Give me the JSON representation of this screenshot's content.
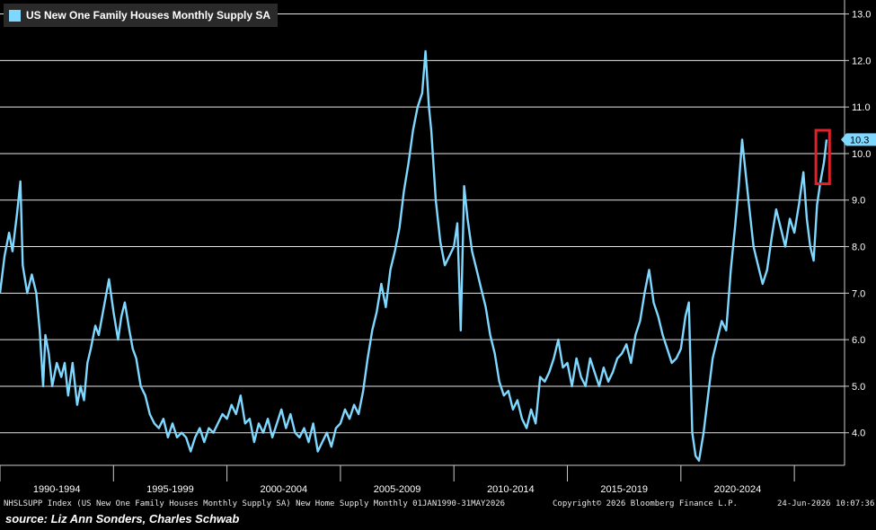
{
  "legend": {
    "label": "US New One Family Houses Monthly Supply SA",
    "color": "#7fd8ff"
  },
  "footer": {
    "left": "NHSLSUPP Index (US New One Family Houses Monthly Supply SA) New Home Supply Monthly 01JAN1990-31MAY2026",
    "copyright": "Copyright© 2026 Bloomberg Finance L.P.",
    "timestamp": "24-Jun-2026 10:07:36"
  },
  "source_note": "source: Liz Ann Sonders, Charles Schwab",
  "chart_data": {
    "type": "line",
    "title": "",
    "xlabel": "",
    "ylabel": "",
    "ylim": [
      3.3,
      13.3
    ],
    "y_ticks": [
      "4.0",
      "5.0",
      "6.0",
      "7.0",
      "8.0",
      "9.0",
      "10.0",
      "11.0",
      "12.0",
      "13.0"
    ],
    "x_tick_labels": [
      "1990-1994",
      "1995-1999",
      "2000-2004",
      "2005-2009",
      "2010-2014",
      "2015-2019",
      "2020-2024"
    ],
    "x_range": [
      1990.0,
      2026.42
    ],
    "grid": "horizontal",
    "background": "#000000",
    "line_color": "#7fd8ff",
    "last_value_label": "10.3",
    "highlight_box_color": "#e0222a",
    "series": [
      {
        "name": "US New One Family Houses Monthly Supply SA",
        "points": [
          [
            1990.0,
            7.0
          ],
          [
            1990.2,
            7.8
          ],
          [
            1990.4,
            8.3
          ],
          [
            1990.55,
            7.9
          ],
          [
            1990.75,
            8.7
          ],
          [
            1990.9,
            9.4
          ],
          [
            1991.0,
            7.6
          ],
          [
            1991.2,
            7.0
          ],
          [
            1991.4,
            7.4
          ],
          [
            1991.6,
            7.0
          ],
          [
            1991.75,
            6.2
          ],
          [
            1991.9,
            5.0
          ],
          [
            1992.0,
            6.1
          ],
          [
            1992.15,
            5.7
          ],
          [
            1992.3,
            5.0
          ],
          [
            1992.5,
            5.5
          ],
          [
            1992.7,
            5.2
          ],
          [
            1992.85,
            5.5
          ],
          [
            1993.0,
            4.8
          ],
          [
            1993.2,
            5.5
          ],
          [
            1993.4,
            4.6
          ],
          [
            1993.55,
            5.0
          ],
          [
            1993.7,
            4.7
          ],
          [
            1993.85,
            5.5
          ],
          [
            1994.0,
            5.8
          ],
          [
            1994.2,
            6.3
          ],
          [
            1994.35,
            6.1
          ],
          [
            1994.5,
            6.5
          ],
          [
            1994.65,
            6.9
          ],
          [
            1994.8,
            7.3
          ],
          [
            1995.0,
            6.6
          ],
          [
            1995.2,
            6.0
          ],
          [
            1995.35,
            6.5
          ],
          [
            1995.5,
            6.8
          ],
          [
            1995.7,
            6.2
          ],
          [
            1995.85,
            5.8
          ],
          [
            1996.0,
            5.6
          ],
          [
            1996.2,
            5.0
          ],
          [
            1996.4,
            4.8
          ],
          [
            1996.6,
            4.4
          ],
          [
            1996.8,
            4.2
          ],
          [
            1997.0,
            4.1
          ],
          [
            1997.2,
            4.3
          ],
          [
            1997.4,
            3.9
          ],
          [
            1997.6,
            4.2
          ],
          [
            1997.8,
            3.9
          ],
          [
            1998.0,
            4.0
          ],
          [
            1998.2,
            3.9
          ],
          [
            1998.4,
            3.6
          ],
          [
            1998.6,
            3.9
          ],
          [
            1998.8,
            4.1
          ],
          [
            1999.0,
            3.8
          ],
          [
            1999.2,
            4.1
          ],
          [
            1999.4,
            4.0
          ],
          [
            1999.6,
            4.2
          ],
          [
            1999.8,
            4.4
          ],
          [
            2000.0,
            4.3
          ],
          [
            2000.2,
            4.6
          ],
          [
            2000.4,
            4.4
          ],
          [
            2000.6,
            4.8
          ],
          [
            2000.8,
            4.2
          ],
          [
            2001.0,
            4.3
          ],
          [
            2001.2,
            3.8
          ],
          [
            2001.4,
            4.2
          ],
          [
            2001.6,
            4.0
          ],
          [
            2001.8,
            4.3
          ],
          [
            2002.0,
            3.9
          ],
          [
            2002.2,
            4.2
          ],
          [
            2002.4,
            4.5
          ],
          [
            2002.6,
            4.1
          ],
          [
            2002.8,
            4.4
          ],
          [
            2003.0,
            4.0
          ],
          [
            2003.2,
            3.9
          ],
          [
            2003.4,
            4.1
          ],
          [
            2003.6,
            3.8
          ],
          [
            2003.8,
            4.2
          ],
          [
            2004.0,
            3.6
          ],
          [
            2004.2,
            3.8
          ],
          [
            2004.4,
            4.0
          ],
          [
            2004.6,
            3.7
          ],
          [
            2004.8,
            4.1
          ],
          [
            2005.0,
            4.2
          ],
          [
            2005.2,
            4.5
          ],
          [
            2005.4,
            4.3
          ],
          [
            2005.6,
            4.6
          ],
          [
            2005.8,
            4.4
          ],
          [
            2006.0,
            4.9
          ],
          [
            2006.2,
            5.6
          ],
          [
            2006.4,
            6.2
          ],
          [
            2006.6,
            6.6
          ],
          [
            2006.8,
            7.2
          ],
          [
            2007.0,
            6.7
          ],
          [
            2007.2,
            7.5
          ],
          [
            2007.4,
            7.9
          ],
          [
            2007.6,
            8.4
          ],
          [
            2007.8,
            9.2
          ],
          [
            2008.0,
            9.8
          ],
          [
            2008.2,
            10.5
          ],
          [
            2008.4,
            11.0
          ],
          [
            2008.6,
            11.3
          ],
          [
            2008.75,
            12.2
          ],
          [
            2008.9,
            11.0
          ],
          [
            2009.0,
            10.5
          ],
          [
            2009.2,
            9.0
          ],
          [
            2009.4,
            8.1
          ],
          [
            2009.6,
            7.6
          ],
          [
            2009.8,
            7.8
          ],
          [
            2010.0,
            8.0
          ],
          [
            2010.15,
            8.5
          ],
          [
            2010.3,
            6.2
          ],
          [
            2010.45,
            9.3
          ],
          [
            2010.6,
            8.6
          ],
          [
            2010.8,
            7.9
          ],
          [
            2011.0,
            7.5
          ],
          [
            2011.2,
            7.1
          ],
          [
            2011.4,
            6.7
          ],
          [
            2011.6,
            6.1
          ],
          [
            2011.8,
            5.7
          ],
          [
            2012.0,
            5.1
          ],
          [
            2012.2,
            4.8
          ],
          [
            2012.4,
            4.9
          ],
          [
            2012.6,
            4.5
          ],
          [
            2012.8,
            4.7
          ],
          [
            2013.0,
            4.3
          ],
          [
            2013.2,
            4.1
          ],
          [
            2013.4,
            4.5
          ],
          [
            2013.6,
            4.2
          ],
          [
            2013.8,
            5.2
          ],
          [
            2014.0,
            5.1
          ],
          [
            2014.2,
            5.3
          ],
          [
            2014.4,
            5.6
          ],
          [
            2014.6,
            6.0
          ],
          [
            2014.8,
            5.4
          ],
          [
            2015.0,
            5.5
          ],
          [
            2015.2,
            5.0
          ],
          [
            2015.4,
            5.6
          ],
          [
            2015.6,
            5.2
          ],
          [
            2015.8,
            5.0
          ],
          [
            2016.0,
            5.6
          ],
          [
            2016.2,
            5.3
          ],
          [
            2016.4,
            5.0
          ],
          [
            2016.6,
            5.4
          ],
          [
            2016.8,
            5.1
          ],
          [
            2017.0,
            5.3
          ],
          [
            2017.2,
            5.6
          ],
          [
            2017.4,
            5.7
          ],
          [
            2017.6,
            5.9
          ],
          [
            2017.8,
            5.5
          ],
          [
            2018.0,
            6.1
          ],
          [
            2018.2,
            6.4
          ],
          [
            2018.4,
            7.0
          ],
          [
            2018.6,
            7.5
          ],
          [
            2018.8,
            6.8
          ],
          [
            2019.0,
            6.5
          ],
          [
            2019.2,
            6.1
          ],
          [
            2019.4,
            5.8
          ],
          [
            2019.6,
            5.5
          ],
          [
            2019.8,
            5.6
          ],
          [
            2020.0,
            5.8
          ],
          [
            2020.2,
            6.5
          ],
          [
            2020.35,
            6.8
          ],
          [
            2020.5,
            4.0
          ],
          [
            2020.65,
            3.5
          ],
          [
            2020.8,
            3.4
          ],
          [
            2021.0,
            4.0
          ],
          [
            2021.2,
            4.8
          ],
          [
            2021.4,
            5.6
          ],
          [
            2021.6,
            6.0
          ],
          [
            2021.8,
            6.4
          ],
          [
            2022.0,
            6.2
          ],
          [
            2022.2,
            7.5
          ],
          [
            2022.4,
            8.5
          ],
          [
            2022.55,
            9.3
          ],
          [
            2022.7,
            10.3
          ],
          [
            2022.85,
            9.6
          ],
          [
            2023.0,
            8.9
          ],
          [
            2023.2,
            8.0
          ],
          [
            2023.4,
            7.6
          ],
          [
            2023.6,
            7.2
          ],
          [
            2023.8,
            7.5
          ],
          [
            2024.0,
            8.2
          ],
          [
            2024.2,
            8.8
          ],
          [
            2024.4,
            8.4
          ],
          [
            2024.6,
            8.0
          ],
          [
            2024.8,
            8.6
          ],
          [
            2025.0,
            8.3
          ],
          [
            2025.2,
            8.9
          ],
          [
            2025.4,
            9.6
          ],
          [
            2025.55,
            8.6
          ],
          [
            2025.7,
            8.0
          ],
          [
            2025.85,
            7.7
          ],
          [
            2026.0,
            8.9
          ],
          [
            2026.15,
            9.4
          ],
          [
            2026.3,
            9.8
          ],
          [
            2026.42,
            10.3
          ]
        ]
      }
    ]
  }
}
